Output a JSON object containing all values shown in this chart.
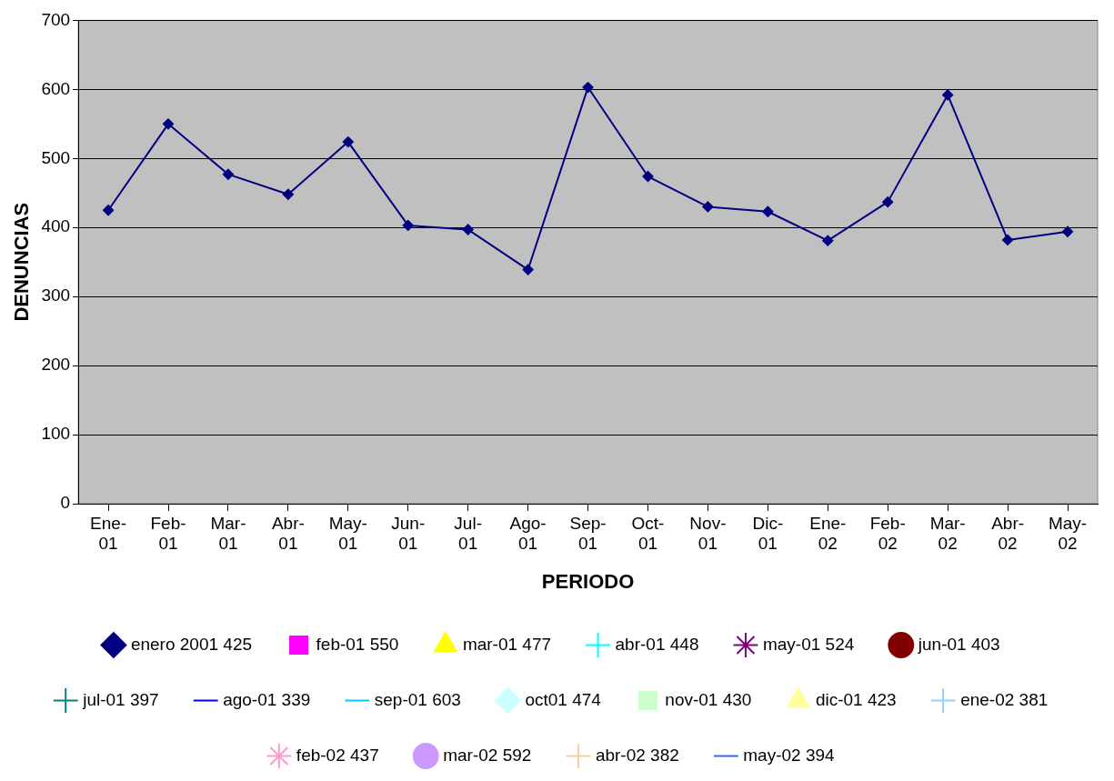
{
  "chart_data": {
    "type": "line",
    "xlabel": "PERIODO",
    "ylabel": "DENUNCIAS",
    "categories": [
      "Ene-01",
      "Feb-01",
      "Mar-01",
      "Abr-01",
      "May-01",
      "Jun-01",
      "Jul-01",
      "Ago-01",
      "Sep-01",
      "Oct-01",
      "Nov-01",
      "Dic-01",
      "Ene-02",
      "Feb-02",
      "Mar-02",
      "Abr-02",
      "May-02"
    ],
    "ylim": [
      0,
      700
    ],
    "yticks": [
      0,
      100,
      200,
      300,
      400,
      500,
      600,
      700
    ],
    "grid": "y",
    "legend": "bottom",
    "series": [
      {
        "name": "enero 2001 425",
        "color": "#000080",
        "marker": "diamond",
        "values": [
          425,
          550,
          477,
          448,
          524,
          403,
          397,
          339,
          603,
          474,
          430,
          423,
          381,
          437,
          592,
          382,
          394
        ]
      },
      {
        "name": "feb-01 550",
        "color": "#ff00ff",
        "marker": "square",
        "values": [
          null,
          null,
          null,
          null,
          null,
          null,
          null,
          null,
          null,
          null,
          null,
          null,
          null,
          null,
          null,
          null,
          null
        ]
      },
      {
        "name": "mar-01 477",
        "color": "#ffff00",
        "marker": "triangle",
        "values": [
          null,
          null,
          null,
          null,
          null,
          null,
          null,
          null,
          null,
          null,
          null,
          null,
          null,
          null,
          null,
          null,
          null
        ]
      },
      {
        "name": "abr-01 448",
        "color": "#00ffff",
        "marker": "cross",
        "values": [
          null,
          null,
          null,
          null,
          null,
          null,
          null,
          null,
          null,
          null,
          null,
          null,
          null,
          null,
          null,
          null,
          null
        ]
      },
      {
        "name": "may-01 524",
        "color": "#800080",
        "marker": "star",
        "values": [
          null,
          null,
          null,
          null,
          null,
          null,
          null,
          null,
          null,
          null,
          null,
          null,
          null,
          null,
          null,
          null,
          null
        ]
      },
      {
        "name": "jun-01 403",
        "color": "#800000",
        "marker": "circle",
        "values": [
          null,
          null,
          null,
          null,
          null,
          null,
          null,
          null,
          null,
          null,
          null,
          null,
          null,
          null,
          null,
          null,
          null
        ]
      },
      {
        "name": "jul-01 397",
        "color": "#008080",
        "marker": "cross",
        "values": [
          null,
          null,
          null,
          null,
          null,
          null,
          null,
          null,
          null,
          null,
          null,
          null,
          null,
          null,
          null,
          null,
          null
        ]
      },
      {
        "name": "ago-01 339",
        "color": "#0000ff",
        "marker": "none",
        "values": [
          null,
          null,
          null,
          null,
          null,
          null,
          null,
          null,
          null,
          null,
          null,
          null,
          null,
          null,
          null,
          null,
          null
        ]
      },
      {
        "name": "sep-01 603",
        "color": "#00ccff",
        "marker": "none",
        "values": [
          null,
          null,
          null,
          null,
          null,
          null,
          null,
          null,
          null,
          null,
          null,
          null,
          null,
          null,
          null,
          null,
          null
        ]
      },
      {
        "name": "oct01 474",
        "color": "#ccffff",
        "marker": "diamond",
        "values": [
          null,
          null,
          null,
          null,
          null,
          null,
          null,
          null,
          null,
          null,
          null,
          null,
          null,
          null,
          null,
          null,
          null
        ]
      },
      {
        "name": "nov-01 430",
        "color": "#ccffcc",
        "marker": "square",
        "values": [
          null,
          null,
          null,
          null,
          null,
          null,
          null,
          null,
          null,
          null,
          null,
          null,
          null,
          null,
          null,
          null,
          null
        ]
      },
      {
        "name": "dic-01 423",
        "color": "#ffff99",
        "marker": "triangle",
        "values": [
          null,
          null,
          null,
          null,
          null,
          null,
          null,
          null,
          null,
          null,
          null,
          null,
          null,
          null,
          null,
          null,
          null
        ]
      },
      {
        "name": "ene-02 381",
        "color": "#99ccff",
        "marker": "cross",
        "values": [
          null,
          null,
          null,
          null,
          null,
          null,
          null,
          null,
          null,
          null,
          null,
          null,
          null,
          null,
          null,
          null,
          null
        ]
      },
      {
        "name": "feb-02 437",
        "color": "#ff99cc",
        "marker": "star",
        "values": [
          null,
          null,
          null,
          null,
          null,
          null,
          null,
          null,
          null,
          null,
          null,
          null,
          null,
          null,
          null,
          null,
          null
        ]
      },
      {
        "name": "mar-02 592",
        "color": "#cc99ff",
        "marker": "circle",
        "values": [
          null,
          null,
          null,
          null,
          null,
          null,
          null,
          null,
          null,
          null,
          null,
          null,
          null,
          null,
          null,
          null,
          null
        ]
      },
      {
        "name": "abr-02 382",
        "color": "#ffcc99",
        "marker": "cross",
        "values": [
          null,
          null,
          null,
          null,
          null,
          null,
          null,
          null,
          null,
          null,
          null,
          null,
          null,
          null,
          null,
          null,
          null
        ]
      },
      {
        "name": "may-02 394",
        "color": "#3366ff",
        "marker": "none",
        "values": [
          null,
          null,
          null,
          null,
          null,
          null,
          null,
          null,
          null,
          null,
          null,
          null,
          null,
          null,
          null,
          null,
          null
        ]
      }
    ]
  }
}
